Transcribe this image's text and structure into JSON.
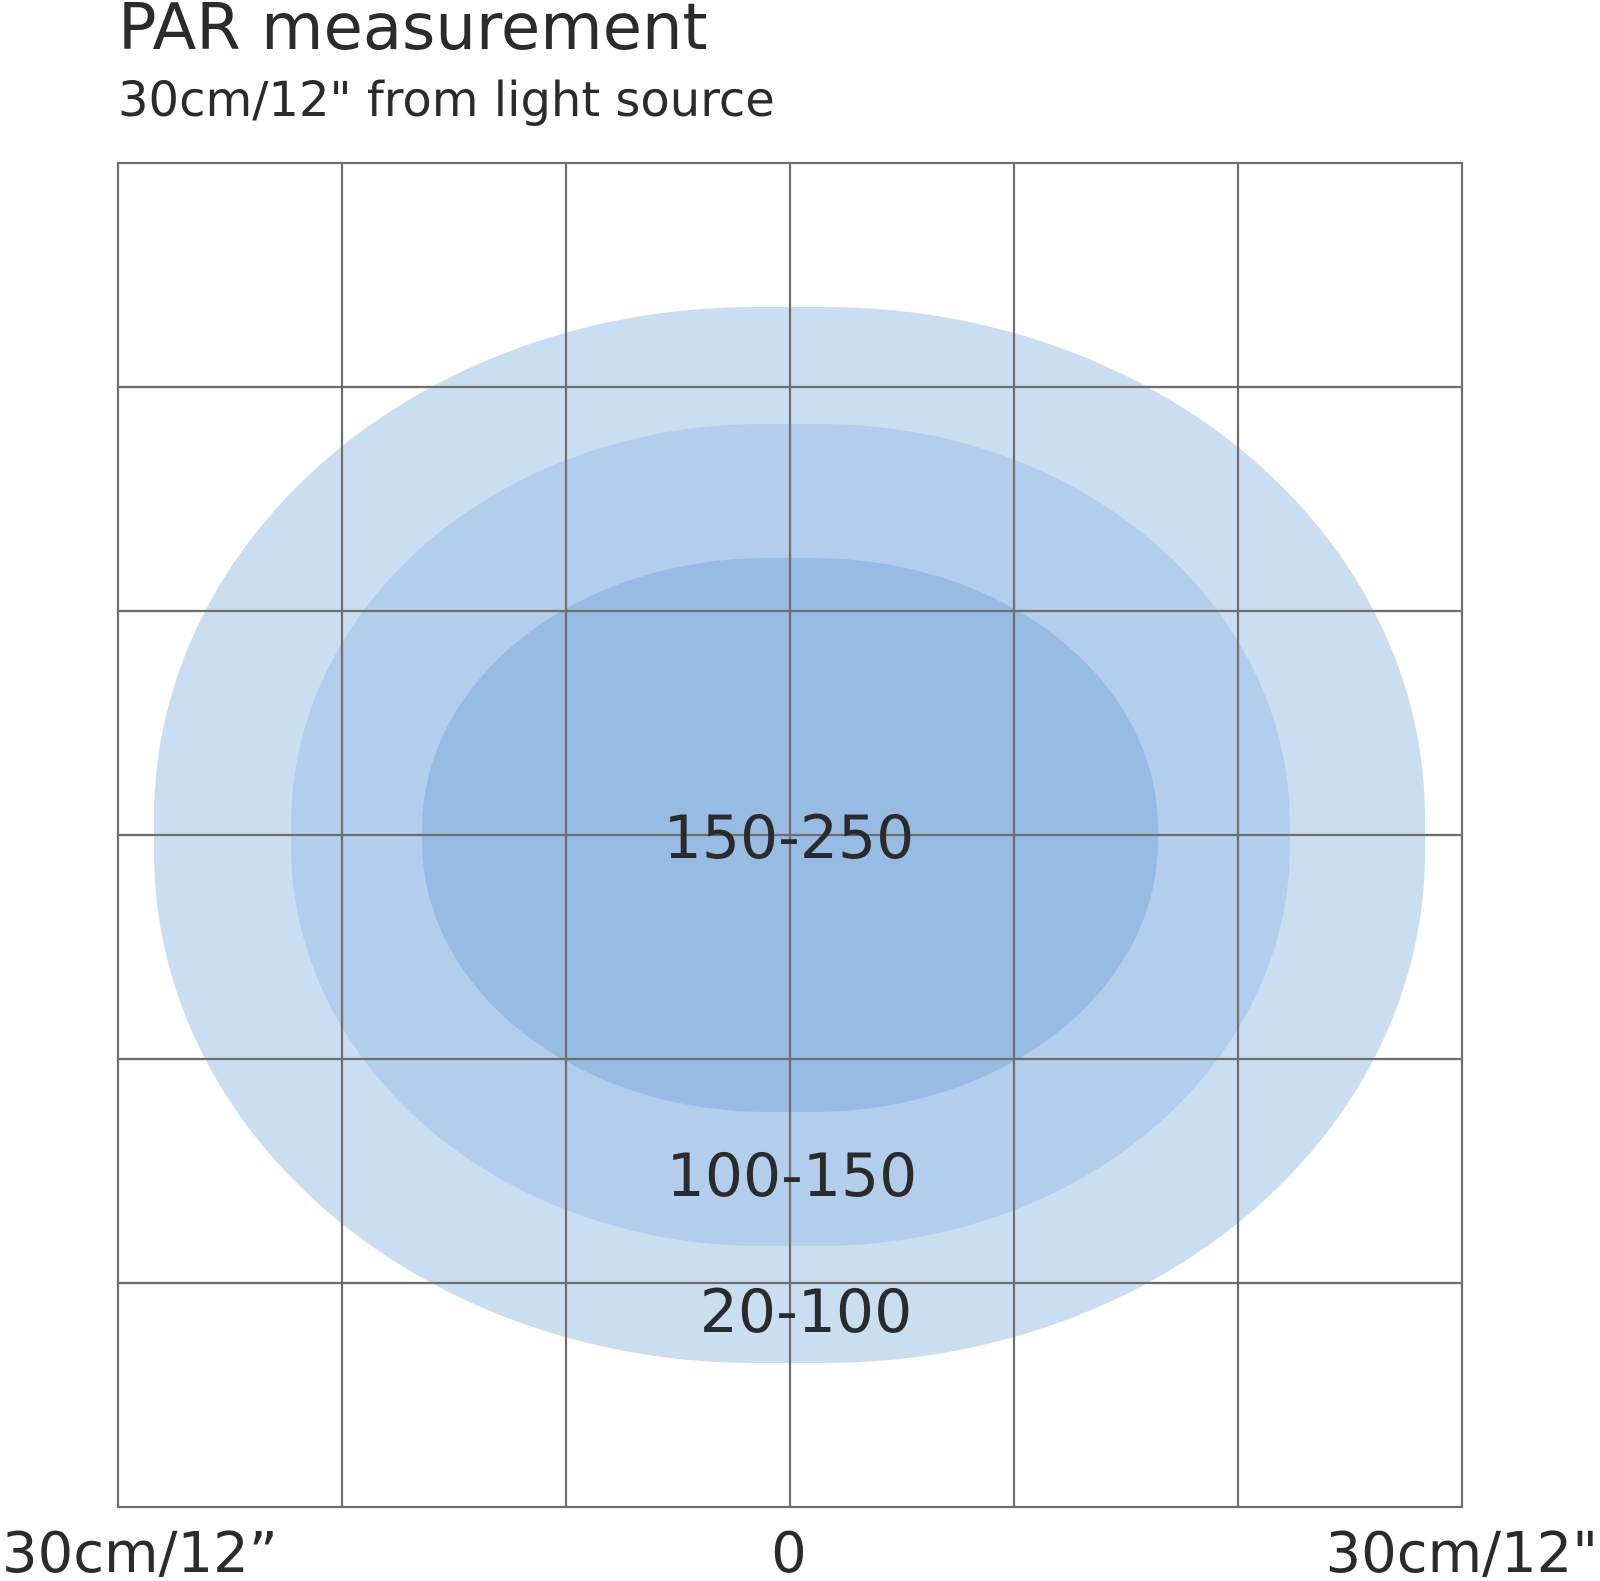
{
  "header": {
    "title": "PAR measurement",
    "subtitle": "30cm/12\" from light source"
  },
  "zones": [
    {
      "label": "20-100"
    },
    {
      "label": "100-150"
    },
    {
      "label": "150-250"
    }
  ],
  "axis": {
    "left": "30cm/12”",
    "center": "0",
    "right": "30cm/12\""
  }
}
